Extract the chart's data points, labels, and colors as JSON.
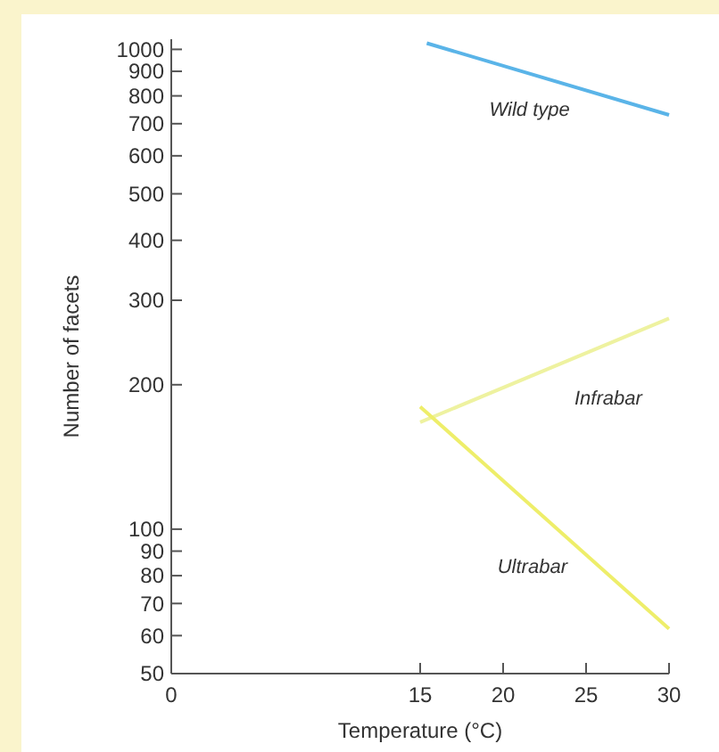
{
  "chart_data": {
    "type": "line",
    "xlabel": "Temperature (°C)",
    "ylabel": "Number of facets",
    "log": "y",
    "xlim": [
      0,
      30
    ],
    "xticks": [
      0,
      15,
      20,
      25,
      30
    ],
    "ylim": [
      50,
      1050
    ],
    "yticks": [
      50,
      60,
      70,
      80,
      90,
      100,
      200,
      300,
      400,
      500,
      600,
      700,
      800,
      900,
      1000
    ],
    "grid": false,
    "marker": "none",
    "line_style": "solid",
    "series": [
      {
        "name": "Wild type",
        "color": "#5ab4e8",
        "x": [
          15.4,
          30
        ],
        "values": [
          1030,
          730
        ]
      },
      {
        "name": "Infrabar",
        "color": "#eef2a0",
        "x": [
          15,
          30
        ],
        "values": [
          167,
          275
        ]
      },
      {
        "name": "Ultrabar",
        "color": "#eeee6a",
        "x": [
          15,
          30
        ],
        "values": [
          180,
          62
        ]
      }
    ]
  }
}
